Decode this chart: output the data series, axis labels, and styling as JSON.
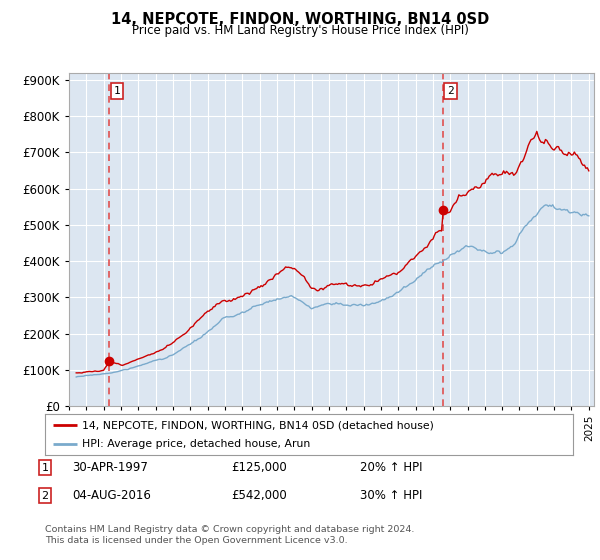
{
  "title": "14, NEPCOTE, FINDON, WORTHING, BN14 0SD",
  "subtitle": "Price paid vs. HM Land Registry's House Price Index (HPI)",
  "ylim": [
    0,
    900000
  ],
  "yticks": [
    0,
    100000,
    200000,
    300000,
    400000,
    500000,
    600000,
    700000,
    800000,
    900000
  ],
  "xlim_start": 1995.4,
  "xlim_end": 2025.3,
  "xticks": [
    1995,
    1996,
    1997,
    1998,
    1999,
    2000,
    2001,
    2002,
    2003,
    2004,
    2005,
    2006,
    2007,
    2008,
    2009,
    2010,
    2011,
    2012,
    2013,
    2014,
    2015,
    2016,
    2017,
    2018,
    2019,
    2020,
    2021,
    2022,
    2023,
    2024,
    2025
  ],
  "transaction1_x": 1997.33,
  "transaction1_y": 125000,
  "transaction2_x": 2016.58,
  "transaction2_y": 542000,
  "house_color": "#cc0000",
  "hpi_color": "#7aaacc",
  "plot_bg_color": "#dce6f1",
  "grid_color": "#ffffff",
  "vline_color": "#e05050",
  "legend_label_house": "14, NEPCOTE, FINDON, WORTHING, BN14 0SD (detached house)",
  "legend_label_hpi": "HPI: Average price, detached house, Arun",
  "transaction1_date": "30-APR-1997",
  "transaction1_price": "£125,000",
  "transaction1_hpi": "20% ↑ HPI",
  "transaction2_date": "04-AUG-2016",
  "transaction2_price": "£542,000",
  "transaction2_hpi": "30% ↑ HPI",
  "footer": "Contains HM Land Registry data © Crown copyright and database right 2024.\nThis data is licensed under the Open Government Licence v3.0."
}
